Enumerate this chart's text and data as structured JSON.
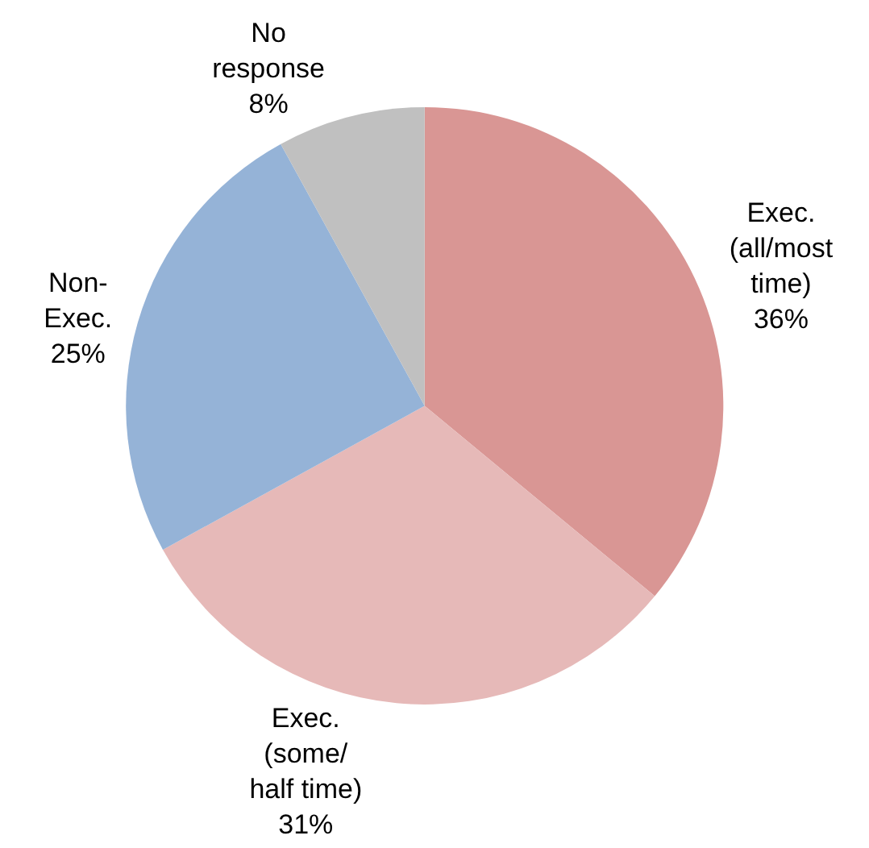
{
  "chart_data": {
    "type": "pie",
    "categories": [
      "Exec.\n(all/most\ntime)",
      "Exec.\n(some/\nhalf time)",
      "Non-\nExec.",
      "No\nresponse"
    ],
    "values": [
      36,
      31,
      25,
      8
    ],
    "value_labels": [
      "36%",
      "31%",
      "25%",
      "8%"
    ],
    "colors": [
      "#d99694",
      "#e6b9b8",
      "#95b3d7",
      "#c0c0c0"
    ]
  }
}
